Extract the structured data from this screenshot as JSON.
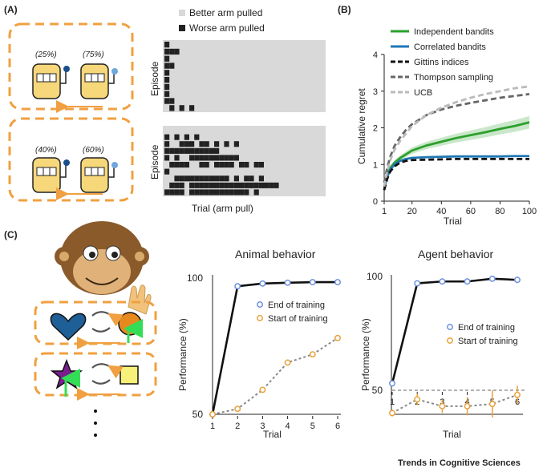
{
  "panel_labels": {
    "a": "(A)",
    "b": "(B)",
    "c": "(C)"
  },
  "panel_a": {
    "legend": [
      {
        "label": "Better arm pulled",
        "color": "#d9d9d9"
      },
      {
        "label": "Worse arm pulled",
        "color": "#222222"
      }
    ],
    "top_probs": [
      "(25%)",
      "(75%)"
    ],
    "bottom_probs": [
      "(40%)",
      "(60%)"
    ],
    "ylabel": "Episode",
    "xlabel": "Trial (arm pull)",
    "top_raster_rows": [
      [
        0
      ],
      [
        0,
        1,
        2
      ],
      [
        0
      ],
      [
        0,
        1
      ],
      [
        0
      ],
      [
        0
      ],
      [
        0
      ],
      [
        0
      ],
      [
        0,
        1
      ],
      [
        1,
        3,
        5
      ]
    ],
    "bottom_raster_rows": [
      [],
      [
        0,
        2,
        4,
        6
      ],
      [
        0,
        3,
        4,
        5,
        7,
        8,
        10,
        12,
        14
      ],
      [
        0,
        1,
        2,
        3,
        4,
        5,
        6,
        7,
        8,
        9,
        10
      ],
      [
        0,
        2,
        5,
        6,
        7,
        8,
        9,
        10,
        11,
        12,
        13,
        14
      ],
      [
        1,
        2,
        3,
        4,
        7,
        8,
        10,
        11,
        12,
        13,
        15,
        16,
        18,
        19
      ],
      [
        0
      ],
      [
        2,
        3,
        4,
        5,
        6,
        7,
        8,
        9,
        10,
        11,
        12,
        14,
        16,
        17,
        19
      ],
      [
        1,
        2,
        3,
        5,
        6,
        7,
        8,
        9,
        10,
        11,
        12,
        13,
        14,
        15,
        16,
        17,
        18,
        19,
        20,
        21,
        22
      ],
      [
        0,
        1,
        2,
        3,
        5,
        6,
        7,
        8,
        9,
        10,
        11,
        12,
        13,
        14,
        15,
        16,
        18
      ]
    ]
  },
  "chart_data": [
    {
      "type": "line",
      "title": "",
      "xlabel": "Trial",
      "ylabel": "Cumulative regret",
      "xlim": [
        1,
        100
      ],
      "ylim": [
        0,
        4
      ],
      "xticks": [
        1,
        20,
        40,
        60,
        80,
        100
      ],
      "yticks": [
        0,
        1,
        2,
        3,
        4
      ],
      "series": [
        {
          "name": "Independent bandits",
          "color": "#2ca02c",
          "style": "solid",
          "x": [
            1,
            3,
            5,
            8,
            12,
            16,
            20,
            30,
            40,
            50,
            60,
            70,
            80,
            90,
            100
          ],
          "y": [
            0.4,
            0.7,
            0.9,
            1.05,
            1.18,
            1.28,
            1.38,
            1.52,
            1.62,
            1.72,
            1.8,
            1.88,
            1.97,
            2.05,
            2.15
          ],
          "band": [
            0.02,
            0.04,
            0.05,
            0.06,
            0.07,
            0.08,
            0.09,
            0.1,
            0.11,
            0.12,
            0.13,
            0.14,
            0.15,
            0.16,
            0.17
          ]
        },
        {
          "name": "Correlated bandits",
          "color": "#1f77b4",
          "style": "solid",
          "x": [
            1,
            3,
            5,
            8,
            12,
            16,
            20,
            30,
            40,
            50,
            60,
            70,
            80,
            90,
            100
          ],
          "y": [
            0.35,
            0.65,
            0.85,
            1.0,
            1.1,
            1.15,
            1.18,
            1.2,
            1.21,
            1.22,
            1.22,
            1.22,
            1.22,
            1.23,
            1.23
          ]
        },
        {
          "name": "Gittins indices",
          "color": "#111111",
          "style": "dashed",
          "x": [
            1,
            3,
            5,
            8,
            12,
            16,
            20,
            30,
            40,
            50,
            60,
            70,
            80,
            90,
            100
          ],
          "y": [
            0.3,
            0.6,
            0.8,
            0.95,
            1.05,
            1.1,
            1.12,
            1.13,
            1.14,
            1.15,
            1.15,
            1.15,
            1.15,
            1.15,
            1.15
          ]
        },
        {
          "name": "Thompson sampling",
          "color": "#666666",
          "style": "dashed",
          "x": [
            1,
            3,
            5,
            8,
            12,
            16,
            20,
            30,
            40,
            50,
            60,
            70,
            80,
            90,
            100
          ],
          "y": [
            0.5,
            0.9,
            1.2,
            1.5,
            1.75,
            1.95,
            2.1,
            2.35,
            2.5,
            2.6,
            2.68,
            2.75,
            2.82,
            2.87,
            2.92
          ]
        },
        {
          "name": "UCB",
          "color": "#bbbbbb",
          "style": "dashed",
          "x": [
            1,
            3,
            5,
            8,
            12,
            16,
            20,
            30,
            40,
            50,
            60,
            70,
            80,
            90,
            100
          ],
          "y": [
            0.4,
            0.8,
            1.1,
            1.4,
            1.65,
            1.85,
            2.05,
            2.35,
            2.55,
            2.7,
            2.82,
            2.92,
            3.0,
            3.08,
            3.13
          ]
        }
      ]
    },
    {
      "type": "line",
      "title": "Animal behavior",
      "xlabel": "Trial",
      "ylabel": "Performance (%)",
      "x": [
        1,
        2,
        3,
        4,
        5,
        6
      ],
      "ylim": [
        50,
        100
      ],
      "yticks": [
        50,
        100
      ],
      "series": [
        {
          "name": "End of training",
          "color": "#111111",
          "marker": "#6b8fe0",
          "style": "solid",
          "values": [
            50,
            97,
            98,
            98.3,
            98.5,
            98.5
          ]
        },
        {
          "name": "Start of training",
          "color": "#888888",
          "marker": "#e8a23a",
          "style": "dotted",
          "values": [
            50,
            52,
            59,
            69,
            72,
            78
          ]
        }
      ]
    },
    {
      "type": "line",
      "title": "Agent behavior",
      "xlabel": "Trial",
      "ylabel": "Performance (%)",
      "x": [
        1,
        2,
        3,
        4,
        5,
        6
      ],
      "ylim": [
        50,
        100
      ],
      "yticks": [
        50,
        100
      ],
      "reference_line": 50,
      "series": [
        {
          "name": "End of training",
          "color": "#111111",
          "marker": "#6b8fe0",
          "style": "solid",
          "values": [
            53,
            97,
            97.8,
            97.8,
            99,
            98.5
          ]
        },
        {
          "name": "Start of training",
          "color": "#888888",
          "marker": "#e8a23a",
          "style": "dotted",
          "values": [
            40,
            46,
            43,
            43,
            44,
            48
          ],
          "error": [
            1.5,
            2.5,
            3,
            4,
            6,
            4
          ]
        }
      ]
    }
  ],
  "footer": "Trends in Cognitive Sciences"
}
